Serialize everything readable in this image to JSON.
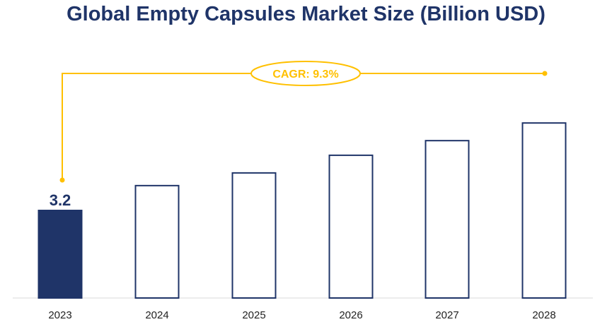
{
  "chart_data": {
    "type": "bar",
    "title": "Global Empty Capsules Market Size (Billion USD)",
    "categories": [
      "2023",
      "2024",
      "2025",
      "2026",
      "2027",
      "2028"
    ],
    "values": [
      3.2,
      4.1,
      4.56,
      5.2,
      5.73,
      6.37
    ],
    "data_labels": [
      "3.2",
      "",
      "",
      "",
      "",
      ""
    ],
    "highlighted_category": "2023",
    "annotation": "CAGR: 9.3%",
    "xlabel": "",
    "ylabel": "",
    "ylim": [
      0,
      7
    ],
    "grid": false,
    "legend": "none",
    "colors": {
      "bar_fill": "#1f3468",
      "bar_outline": "#1f3468",
      "annotation": "#ffc000",
      "axis": "#d9d9d9"
    }
  }
}
